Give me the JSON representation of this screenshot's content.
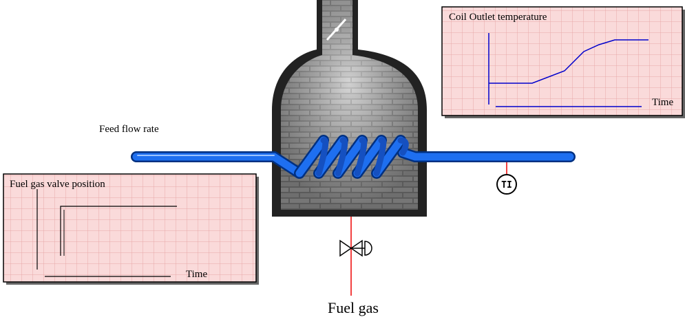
{
  "outlet_trend": {
    "title": "Coil Outlet temperature",
    "x_label": "Time"
  },
  "feed_label": "Feed flow rate",
  "valve_trend": {
    "title": "Fuel gas valve position",
    "x_label": "Time"
  },
  "instrument": "TI",
  "fuel_label": "Fuel gas"
}
